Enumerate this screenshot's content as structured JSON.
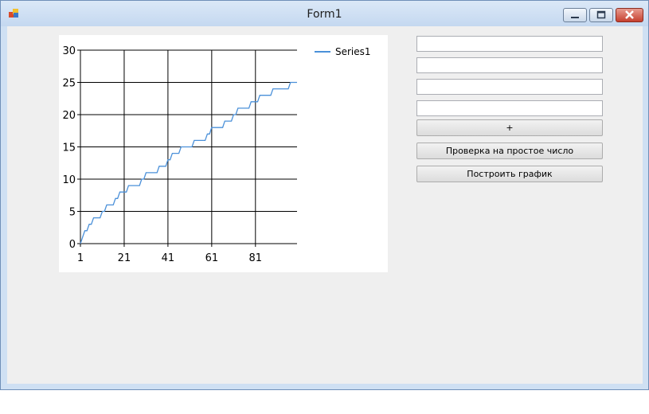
{
  "window": {
    "title": "Form1"
  },
  "inputs": [
    {
      "value": ""
    },
    {
      "value": ""
    },
    {
      "value": ""
    },
    {
      "value": ""
    }
  ],
  "buttons": {
    "plus": "+",
    "prime_check": "Проверка на простое число",
    "build_graph": "Построить график"
  },
  "colors": {
    "series": "#4a90d9",
    "grid": "#000000"
  },
  "chart_data": {
    "type": "line",
    "series": [
      {
        "name": "Series1",
        "x_start": 1,
        "values": [
          0,
          1,
          2,
          2,
          3,
          3,
          4,
          4,
          4,
          4,
          5,
          5,
          6,
          6,
          6,
          6,
          7,
          7,
          8,
          8,
          8,
          8,
          9,
          9,
          9,
          9,
          9,
          9,
          10,
          10,
          11,
          11,
          11,
          11,
          11,
          11,
          12,
          12,
          12,
          12,
          13,
          13,
          14,
          14,
          14,
          14,
          15,
          15,
          15,
          15,
          15,
          15,
          16,
          16,
          16,
          16,
          16,
          16,
          17,
          17,
          18,
          18,
          18,
          18,
          18,
          18,
          19,
          19,
          19,
          19,
          20,
          20,
          21,
          21,
          21,
          21,
          21,
          21,
          22,
          22,
          22,
          22,
          23,
          23,
          23,
          23,
          23,
          23,
          24,
          24,
          24,
          24,
          24,
          24,
          24,
          24,
          25,
          25,
          25,
          25
        ]
      }
    ],
    "xticks": [
      "1",
      "21",
      "41",
      "61",
      "81"
    ],
    "yticks": [
      "0",
      "5",
      "10",
      "15",
      "20",
      "25",
      "30"
    ],
    "ylim": [
      0,
      30
    ],
    "grid": true,
    "legend": "right"
  }
}
